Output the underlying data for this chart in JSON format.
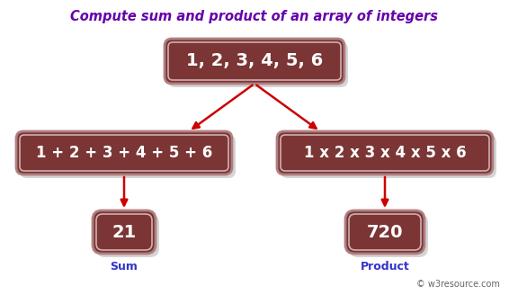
{
  "title": "Compute sum and product of an array of integers",
  "title_color": "#6600aa",
  "title_fontsize": 10.5,
  "background_color": "#ffffff",
  "box_fill_color": "#7B3535",
  "box_edge_color": "#b08080",
  "box_inner_edge_color": "#d0b0b0",
  "box_text_color": "#ffffff",
  "box_edge_width": 2.0,
  "box_inner_edge_width": 1.2,
  "top_box_text": "1, 2, 3, 4, 5, 6",
  "left_box_text": "1 + 2 + 3 + 4 + 5 + 6",
  "right_box_text": "1 x 2 x 3 x 4 x 5 x 6",
  "sum_box_text": "21",
  "product_box_text": "720",
  "sum_label": "Sum",
  "product_label": "Product",
  "label_color": "#3333cc",
  "label_fontsize": 9,
  "arrow_color": "#cc0000",
  "arrow_lw": 1.8,
  "watermark": "© w3resource.com",
  "watermark_color": "#666666",
  "watermark_fontsize": 7,
  "shadow_color": "#888888",
  "shadow_alpha": 0.35
}
